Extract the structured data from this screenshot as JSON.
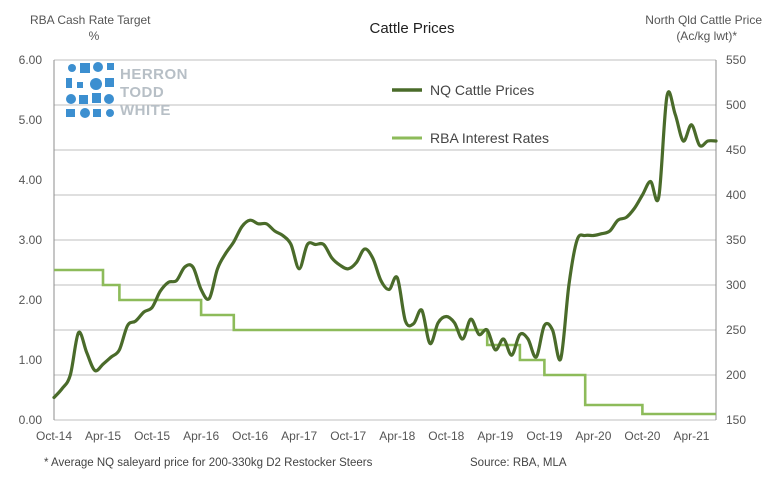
{
  "chart_data": {
    "type": "line",
    "title": "Cattle Prices",
    "y_left_title": [
      "RBA Cash Rate Target",
      "%"
    ],
    "y_right_title": [
      "North Qld Cattle Price",
      "(Ac/kg lwt)*"
    ],
    "y_left_ticks": [
      "0.00",
      "1.00",
      "2.00",
      "3.00",
      "4.00",
      "5.00",
      "6.00"
    ],
    "y_right_ticks": [
      "150",
      "200",
      "250",
      "300",
      "350",
      "400",
      "450",
      "500",
      "550"
    ],
    "ylim_left": [
      0,
      6
    ],
    "ylim_right": [
      150,
      550
    ],
    "x_ticks": [
      "Oct-14",
      "Apr-15",
      "Oct-15",
      "Apr-16",
      "Oct-16",
      "Apr-17",
      "Oct-17",
      "Apr-18",
      "Oct-18",
      "Apr-19",
      "Oct-19",
      "Apr-20",
      "Oct-20",
      "Apr-21"
    ],
    "x_range": [
      "Oct-14",
      "Jul-21"
    ],
    "grid": "horizontal",
    "legend_position": "top-center",
    "series": [
      {
        "name": "NQ Cattle Prices",
        "axis": "right",
        "color": "#4a6b2a",
        "x": [
          "Oct-14",
          "Nov-14",
          "Dec-14",
          "Jan-15",
          "Feb-15",
          "Mar-15",
          "Apr-15",
          "May-15",
          "Jun-15",
          "Jul-15",
          "Aug-15",
          "Sep-15",
          "Oct-15",
          "Nov-15",
          "Dec-15",
          "Jan-16",
          "Feb-16",
          "Mar-16",
          "Apr-16",
          "May-16",
          "Jun-16",
          "Jul-16",
          "Aug-16",
          "Sep-16",
          "Oct-16",
          "Nov-16",
          "Dec-16",
          "Jan-17",
          "Feb-17",
          "Mar-17",
          "Apr-17",
          "May-17",
          "Jun-17",
          "Jul-17",
          "Aug-17",
          "Sep-17",
          "Oct-17",
          "Nov-17",
          "Dec-17",
          "Jan-18",
          "Feb-18",
          "Mar-18",
          "Apr-18",
          "May-18",
          "Jun-18",
          "Jul-18",
          "Aug-18",
          "Sep-18",
          "Oct-18",
          "Nov-18",
          "Dec-18",
          "Jan-19",
          "Feb-19",
          "Mar-19",
          "Apr-19",
          "May-19",
          "Jun-19",
          "Jul-19",
          "Aug-19",
          "Sep-19",
          "Oct-19",
          "Nov-19",
          "Dec-19",
          "Jan-20",
          "Feb-20",
          "Mar-20",
          "Apr-20",
          "May-20",
          "Jun-20",
          "Jul-20",
          "Aug-20",
          "Sep-20",
          "Oct-20",
          "Nov-20",
          "Dec-20",
          "Jan-21",
          "Feb-21",
          "Mar-21",
          "Apr-21",
          "May-21",
          "Jun-21",
          "Jul-21"
        ],
        "values": [
          175,
          185,
          200,
          247,
          225,
          205,
          212,
          220,
          228,
          255,
          260,
          270,
          275,
          293,
          303,
          305,
          320,
          320,
          295,
          285,
          318,
          335,
          348,
          365,
          372,
          368,
          368,
          360,
          355,
          345,
          318,
          345,
          345,
          345,
          330,
          322,
          318,
          325,
          340,
          330,
          305,
          295,
          308,
          260,
          257,
          272,
          235,
          258,
          265,
          258,
          240,
          262,
          245,
          250,
          228,
          240,
          222,
          245,
          240,
          220,
          255,
          250,
          218,
          300,
          350,
          355,
          355,
          357,
          360,
          372,
          375,
          385,
          400,
          415,
          398,
          510,
          490,
          460,
          478,
          455,
          460,
          460
        ]
      },
      {
        "name": "RBA Interest Rates",
        "axis": "left",
        "color": "#8dbb5a",
        "x": [
          "Oct-14",
          "Apr-15",
          "Apr-15",
          "Jun-15",
          "Jun-15",
          "Apr-16",
          "Apr-16",
          "Aug-16",
          "Aug-16",
          "Mar-19",
          "Mar-19",
          "Jul-19",
          "Jul-19",
          "Oct-19",
          "Oct-19",
          "Mar-20",
          "Mar-20",
          "Oct-20",
          "Oct-20",
          "Jul-21"
        ],
        "values": [
          2.5,
          2.5,
          2.25,
          2.25,
          2.0,
          2.0,
          1.75,
          1.75,
          1.5,
          1.5,
          1.25,
          1.25,
          1.0,
          1.0,
          0.75,
          0.75,
          0.25,
          0.25,
          0.1,
          0.1
        ]
      }
    ],
    "footnote": "* Average NQ saleyard price for 200-330kg D2 Restocker Steers",
    "source": "Source: RBA, MLA"
  },
  "logo": {
    "lines": [
      "HERRON",
      "TODD",
      "WHITE"
    ],
    "color": "#3c8fd0",
    "text_color": "#b7bfc6"
  },
  "colors": {
    "grid": "#bfbfbf",
    "axis": "#8c8c8c"
  }
}
